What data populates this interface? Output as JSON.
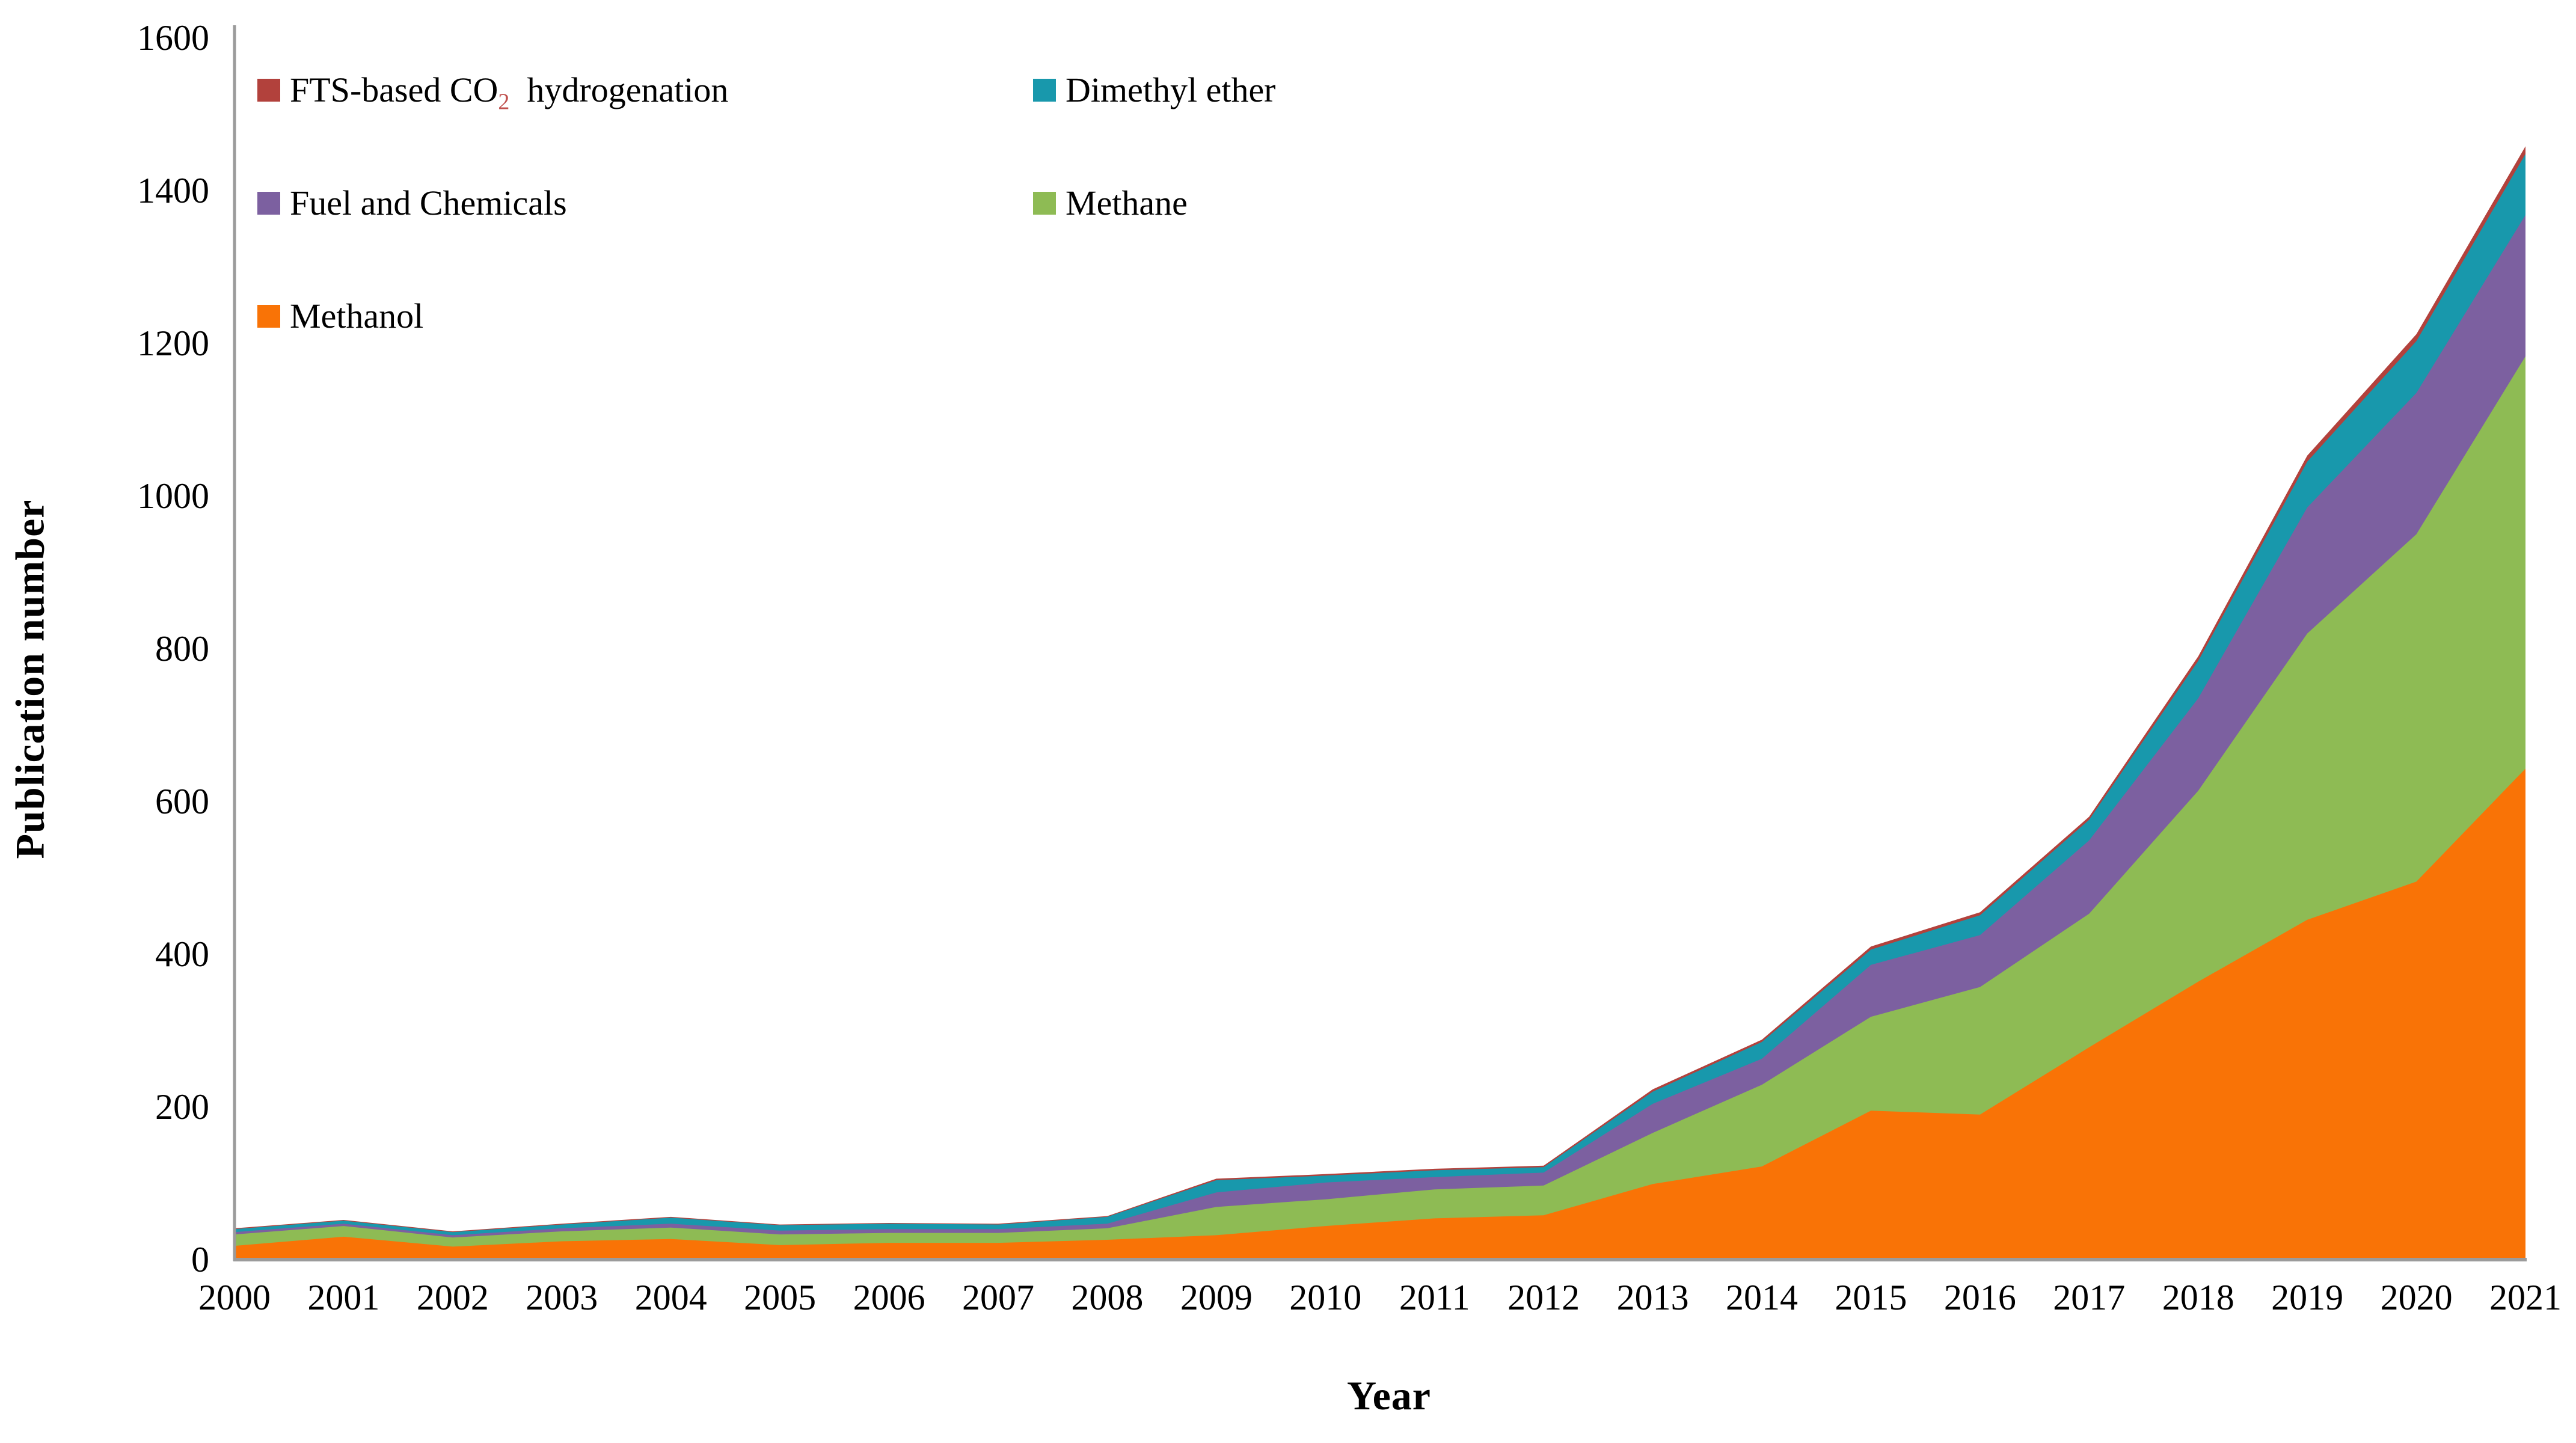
{
  "chart_data": {
    "type": "area",
    "stacked": true,
    "title": "",
    "xlabel": "Year",
    "ylabel": "Publication number",
    "ylim": [
      0,
      1600
    ],
    "y_ticks": [
      "0",
      "200",
      "400",
      "600",
      "800",
      "1000",
      "1200",
      "1400",
      "1600"
    ],
    "grid": "off",
    "legend_position": "top-left-inside",
    "axis_color": "#9b9b9b",
    "years": [
      "2000",
      "2001",
      "2002",
      "2003",
      "2004",
      "2005",
      "2006",
      "2007",
      "2008",
      "2009",
      "2010",
      "2011",
      "2012",
      "2013",
      "2014",
      "2015",
      "2016",
      "2017",
      "2018",
      "2019",
      "2020",
      "2021"
    ],
    "series": [
      {
        "name": "Methanol",
        "color": "#f97306",
        "values": [
          18,
          30,
          17,
          24,
          27,
          19,
          22,
          22,
          26,
          32,
          44,
          54,
          58,
          99,
          122,
          195,
          190,
          278,
          364,
          445,
          495,
          643
        ]
      },
      {
        "name": "Methane",
        "color": "#8ebb54",
        "values": [
          15,
          14,
          12,
          13,
          15,
          14,
          13,
          13,
          15,
          37,
          35,
          38,
          39,
          67,
          107,
          123,
          167,
          175,
          250,
          375,
          455,
          540
        ]
      },
      {
        "name": "Fuel and Chemicals",
        "color": "#7c60a0",
        "values": [
          3,
          3,
          3,
          4,
          5,
          5,
          5,
          5,
          6,
          19,
          22,
          16,
          17,
          38,
          34,
          68,
          68,
          96,
          121,
          165,
          185,
          185
        ]
      },
      {
        "name": "Dimethyl ether",
        "color": "#1898ac",
        "values": [
          4,
          4,
          4,
          5,
          8,
          7,
          7,
          6,
          9,
          16,
          9,
          9,
          7,
          16,
          22,
          20,
          26,
          27,
          49,
          60,
          68,
          80
        ]
      },
      {
        "name": "FTS-based CO2 hydrogenation",
        "color": "#b2413c",
        "values": [
          1,
          1,
          1,
          1,
          1,
          1,
          1,
          1,
          1,
          2,
          2,
          2,
          2,
          3,
          3,
          4,
          4,
          4,
          6,
          8,
          9,
          10
        ]
      }
    ],
    "legend": [
      {
        "series": 4,
        "label_pre": "FTS-based CO",
        "label_sub": "2",
        "label_post": "  hydrogenation",
        "col": 0,
        "row": 0
      },
      {
        "series": 3,
        "label_pre": "Dimethyl ether",
        "label_sub": "",
        "label_post": "",
        "col": 1,
        "row": 0
      },
      {
        "series": 2,
        "label_pre": "Fuel and Chemicals",
        "label_sub": "",
        "label_post": "",
        "col": 0,
        "row": 1
      },
      {
        "series": 1,
        "label_pre": "Methane",
        "label_sub": "",
        "label_post": "",
        "col": 1,
        "row": 1
      },
      {
        "series": 0,
        "label_pre": "Methanol",
        "label_sub": "",
        "label_post": "",
        "col": 0,
        "row": 2
      }
    ]
  }
}
